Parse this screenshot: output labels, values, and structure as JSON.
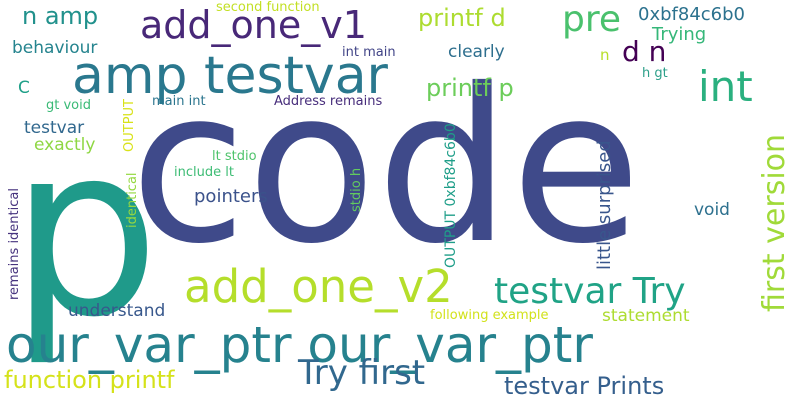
{
  "words": [
    {
      "text": "code",
      "color": "#3f4a8a",
      "vertical": false
    },
    {
      "text": "p",
      "color": "#1f9a8a",
      "vertical": false
    },
    {
      "text": "our_var_ptr our_var_ptr",
      "color": "#26828e",
      "vertical": false
    },
    {
      "text": "amp testvar",
      "color": "#2a788e",
      "vertical": false
    },
    {
      "text": "add_one_v2",
      "color": "#b5de2b",
      "vertical": false
    },
    {
      "text": "add_one_v1",
      "color": "#482878",
      "vertical": false
    },
    {
      "text": "first version",
      "color": "#a0da39",
      "vertical": true
    },
    {
      "text": "testvar Try",
      "color": "#20a386",
      "vertical": false
    },
    {
      "text": "Try first",
      "color": "#31688e",
      "vertical": false
    },
    {
      "text": "int",
      "color": "#2ab07f",
      "vertical": false
    },
    {
      "text": "pre",
      "color": "#4ac16d",
      "vertical": false
    },
    {
      "text": "function printf",
      "color": "#d5e21a",
      "vertical": false
    },
    {
      "text": "testvar Prints",
      "color": "#355f8d",
      "vertical": false
    },
    {
      "text": "printf p",
      "color": "#6ccd5a",
      "vertical": false
    },
    {
      "text": "d n",
      "color": "#440154",
      "vertical": false
    },
    {
      "text": "n amp",
      "color": "#21918c",
      "vertical": false
    },
    {
      "text": "printf d",
      "color": "#addc30",
      "vertical": false
    },
    {
      "text": "0xbf84c6b0",
      "color": "#2c728e",
      "vertical": false
    },
    {
      "text": "Trying",
      "color": "#35b779",
      "vertical": false
    },
    {
      "text": "little surprised",
      "color": "#39568c",
      "vertical": true
    },
    {
      "text": "OUTPUT 0xbf84c6b0",
      "color": "#1f9e89",
      "vertical": true
    },
    {
      "text": "pointers",
      "color": "#3b528b",
      "vertical": false
    },
    {
      "text": "clearly",
      "color": "#2e6f8e",
      "vertical": false
    },
    {
      "text": "behaviour",
      "color": "#25848e",
      "vertical": false
    },
    {
      "text": "understand",
      "color": "#38588c",
      "vertical": false
    },
    {
      "text": "statement",
      "color": "#addc30",
      "vertical": false
    },
    {
      "text": "exactly",
      "color": "#8fd744",
      "vertical": false
    },
    {
      "text": "testvar",
      "color": "#31688e",
      "vertical": false
    },
    {
      "text": "void",
      "color": "#2d708e",
      "vertical": false
    },
    {
      "text": "C",
      "color": "#1fa088",
      "vertical": false
    },
    {
      "text": "n",
      "color": "#b8de29",
      "vertical": false
    },
    {
      "text": "following example",
      "color": "#d2e21b",
      "vertical": false
    },
    {
      "text": "second function",
      "color": "#c2df23",
      "vertical": false
    },
    {
      "text": "int main",
      "color": "#414487",
      "vertical": false
    },
    {
      "text": "Address remains",
      "color": "#472d7b",
      "vertical": false
    },
    {
      "text": "main int",
      "color": "#2b758e",
      "vertical": false
    },
    {
      "text": "gt void",
      "color": "#3aba76",
      "vertical": false
    },
    {
      "text": "include lt",
      "color": "#3dbc74",
      "vertical": false
    },
    {
      "text": "lt stdio",
      "color": "#4ec36b",
      "vertical": false
    },
    {
      "text": "h gt",
      "color": "#2c9f89",
      "vertical": false
    },
    {
      "text": "remains identical",
      "color": "#46337e",
      "vertical": true
    },
    {
      "text": "identical",
      "color": "#95d840",
      "vertical": true
    },
    {
      "text": "OUTPUT",
      "color": "#d8e219",
      "vertical": true
    },
    {
      "text": "stdio h",
      "color": "#62cb5f",
      "vertical": true
    }
  ]
}
